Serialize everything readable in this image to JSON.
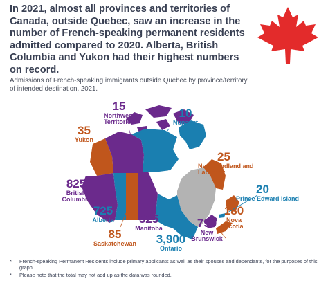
{
  "headline": "In 2021, almost all provinces and territories of Canada, outside Quebec, saw an increase in the number of French-speaking permanent residents admitted compared to 2020. Alberta, British Columbia and Yukon had their highest numbers on record.",
  "subtitle": "Admissions of French-speaking immigrants outside Quebec by province/territory of intended destination, 2021.",
  "regions": [
    {
      "id": "northwest-territories",
      "value": "15",
      "name": "Northwest Territories",
      "color": "#6b2a8c"
    },
    {
      "id": "nunavut",
      "value": "10",
      "name": "Nunavut",
      "color": "#1a7fb0"
    },
    {
      "id": "yukon",
      "value": "35",
      "name": "Yukon",
      "color": "#c0561c"
    },
    {
      "id": "newfoundland-and-labrador",
      "value": "25",
      "name": "Newfoundland and Labrador",
      "color": "#c0561c"
    },
    {
      "id": "prince-edward-island",
      "value": "20",
      "name": "Prince Edward Island",
      "color": "#1a7fb0"
    },
    {
      "id": "british-columbia",
      "value": "825",
      "name": "British Columbia",
      "color": "#6b2a8c"
    },
    {
      "id": "alberta",
      "value": "725",
      "name": "Alberta",
      "color": "#1a7fb0"
    },
    {
      "id": "saskatchewan",
      "value": "85",
      "name": "Saskatchewan",
      "color": "#c0561c"
    },
    {
      "id": "manitoba",
      "value": "325",
      "name": "Manitoba",
      "color": "#6b2a8c"
    },
    {
      "id": "ontario",
      "value": "3,900",
      "name": "Ontario",
      "color": "#1a7fb0"
    },
    {
      "id": "new-brunswick",
      "value": "790",
      "name": "New Brunswick",
      "color": "#6b2a8c"
    },
    {
      "id": "nova-scotia",
      "value": "180",
      "name": "Nova Scotia",
      "color": "#c0561c"
    },
    {
      "id": "quebec",
      "value": "",
      "name": "",
      "color": "#b3b3b3"
    }
  ],
  "footnotes": [
    {
      "marker": "*",
      "text": "French-speaking Permanent Residents include primary applicants as well as their spouses and dependants, for the purposes of this graph."
    },
    {
      "marker": "*",
      "text": "Please note that the total may not add up as the data was rounded."
    }
  ],
  "colors": {
    "maple_leaf": "#e32b2b",
    "text": "#3a4154"
  }
}
